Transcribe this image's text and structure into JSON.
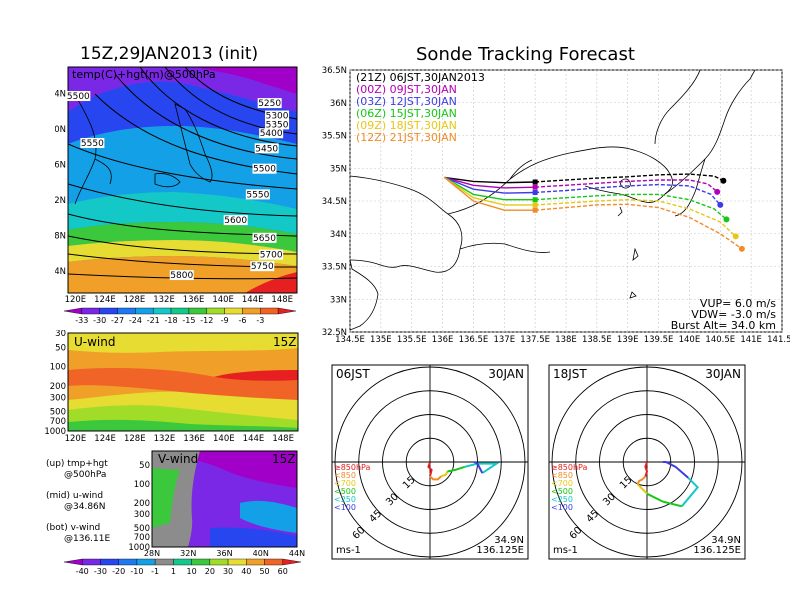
{
  "left_title": "15Z,29JAN2013 (init)",
  "right_title": "Sonde Tracking Forecast",
  "chart_data": [
    {
      "type": "heatmap",
      "title": "15Z,29JAN2013 (init)",
      "label": "temp(C)+hgt(m)@500hPa",
      "x_ticks": [
        "120E",
        "124E",
        "128E",
        "132E",
        "136E",
        "140E",
        "144E",
        "148E"
      ],
      "y_ticks": [
        "24N",
        "28N",
        "32N",
        "36N",
        "40N",
        "44N"
      ],
      "xlim": [
        119,
        150
      ],
      "ylim": [
        21.5,
        47
      ],
      "colorbar_labels": [
        "-33",
        "-30",
        "-27",
        "-24",
        "-21",
        "-18",
        "-15",
        "-12",
        "-9",
        "-6",
        "-3"
      ],
      "colorbar_colors": [
        "#a000c8",
        "#7a28e6",
        "#2846f0",
        "#1e78f0",
        "#14a0e6",
        "#14c8c8",
        "#14c88c",
        "#3cc83c",
        "#a0dc28",
        "#e6dc32",
        "#f0a028",
        "#f06428",
        "#e62020"
      ],
      "contour_labels": [
        {
          "v": "5250",
          "x": 146.3,
          "y": 42.7
        },
        {
          "v": "5300",
          "x": 147.3,
          "y": 41.3
        },
        {
          "v": "5350",
          "x": 147.3,
          "y": 40.3
        },
        {
          "v": "5400",
          "x": 146.5,
          "y": 39.3
        },
        {
          "v": "5450",
          "x": 145.9,
          "y": 37.6
        },
        {
          "v": "5500",
          "x": 145.6,
          "y": 35.3
        },
        {
          "v": "5550",
          "x": 122.3,
          "y": 38.2
        },
        {
          "v": "5550",
          "x": 144.7,
          "y": 32.4
        },
        {
          "v": "5600",
          "x": 141.7,
          "y": 29.5
        },
        {
          "v": "5650",
          "x": 145.6,
          "y": 27.5
        },
        {
          "v": "5700",
          "x": 146.5,
          "y": 25.6
        },
        {
          "v": "5750",
          "x": 145.3,
          "y": 24.3
        },
        {
          "v": "5800",
          "x": 134.4,
          "y": 23.3
        },
        {
          "v": "5500",
          "x": 120.4,
          "y": 43.5
        }
      ]
    },
    {
      "type": "heatmap",
      "label": "U-wind",
      "time": "15Z",
      "x_ticks": [
        "120E",
        "124E",
        "128E",
        "132E",
        "136E",
        "140E",
        "144E",
        "148E"
      ],
      "y_ticks": [
        "30",
        "50",
        "100",
        "200",
        "300",
        "500",
        "700",
        "1000"
      ]
    },
    {
      "type": "heatmap",
      "label": "V-wind",
      "time": "15Z",
      "x_ticks": [
        "28N",
        "32N",
        "36N",
        "40N",
        "44N"
      ],
      "y_ticks": [
        "50",
        "100",
        "200",
        "300",
        "500",
        "700",
        "1000"
      ],
      "colorbar_labels": [
        "-40",
        "-30",
        "-20",
        "-10",
        "-1",
        "1",
        "10",
        "20",
        "30",
        "40",
        "50",
        "60"
      ],
      "colorbar_colors": [
        "#a000c8",
        "#7a28e6",
        "#2846f0",
        "#1e78f0",
        "#14a0e6",
        "#8c8c8c",
        "#14c88c",
        "#3cc83c",
        "#a0dc28",
        "#e6dc32",
        "#f0a028",
        "#f06428",
        "#e62020"
      ]
    },
    {
      "type": "line",
      "title": "Sonde Tracking Forecast",
      "x_ticks": [
        "134.5E",
        "135E",
        "135.5E",
        "136E",
        "136.5E",
        "137E",
        "137.5E",
        "138E",
        "138.5E",
        "139E",
        "139.5E",
        "140E",
        "140.5E",
        "141E",
        "141.5E"
      ],
      "y_ticks": [
        "32.5N",
        "33N",
        "33.5N",
        "34N",
        "34.5N",
        "35N",
        "35.5N",
        "36N",
        "36.5N"
      ],
      "xlim": [
        134.5,
        141.5
      ],
      "ylim": [
        32.5,
        36.5
      ],
      "series": [
        {
          "name": "(21Z) 06JST,30JAN2013",
          "color": "#000000",
          "x": [
            136.03,
            136.5,
            137.0,
            137.5,
            138.0,
            138.5,
            139.0,
            139.5,
            140.0,
            140.4,
            140.55
          ],
          "y": [
            34.86,
            34.8,
            34.78,
            34.79,
            34.82,
            34.85,
            34.87,
            34.9,
            34.91,
            34.88,
            34.81
          ],
          "marker_index": 3
        },
        {
          "name": "(00Z) 09JST,30JAN",
          "color": "#b400b4",
          "x": [
            136.03,
            136.5,
            137.0,
            137.5,
            138.0,
            138.5,
            139.0,
            139.5,
            140.0,
            140.3,
            140.45
          ],
          "y": [
            34.86,
            34.74,
            34.7,
            34.71,
            34.74,
            34.77,
            34.8,
            34.82,
            34.82,
            34.76,
            34.64
          ],
          "marker_index": 3
        },
        {
          "name": "(03Z) 12JST,30JAN",
          "color": "#3c3ce6",
          "x": [
            136.03,
            136.5,
            137.0,
            137.5,
            138.0,
            138.5,
            139.0,
            139.5,
            140.0,
            140.35,
            140.5
          ],
          "y": [
            34.86,
            34.68,
            34.62,
            34.63,
            34.66,
            34.7,
            34.73,
            34.75,
            34.73,
            34.6,
            34.44
          ],
          "marker_index": 3
        },
        {
          "name": "(06Z) 15JST,30JAN",
          "color": "#14c814",
          "x": [
            136.03,
            136.5,
            137.0,
            137.5,
            138.0,
            138.5,
            139.0,
            139.5,
            140.0,
            140.4,
            140.6
          ],
          "y": [
            34.86,
            34.6,
            34.52,
            34.52,
            34.55,
            34.58,
            34.6,
            34.6,
            34.52,
            34.38,
            34.22
          ],
          "marker_index": 3
        },
        {
          "name": "(09Z) 18JST,30JAN",
          "color": "#e6c814",
          "x": [
            136.03,
            136.5,
            137.0,
            137.5,
            138.0,
            138.5,
            139.0,
            139.5,
            140.0,
            140.5,
            140.75
          ],
          "y": [
            34.86,
            34.55,
            34.44,
            34.44,
            34.47,
            34.5,
            34.52,
            34.5,
            34.38,
            34.18,
            33.96
          ],
          "marker_index": 3
        },
        {
          "name": "(12Z) 21JST,30JAN",
          "color": "#f08c28",
          "x": [
            136.03,
            136.5,
            137.0,
            137.5,
            138.0,
            138.5,
            139.0,
            139.5,
            140.0,
            140.5,
            140.85
          ],
          "y": [
            34.86,
            34.5,
            34.36,
            34.36,
            34.4,
            34.44,
            34.45,
            34.4,
            34.25,
            34.0,
            33.77
          ],
          "marker_index": 3
        }
      ],
      "annotations": [
        "VUP= 6.0 m/s",
        "VDW= -3.0 m/s",
        "Burst Alt= 34.0 km"
      ]
    },
    {
      "type": "line",
      "label": "06JST",
      "date": "30JAN",
      "unit": "ms-1",
      "ring_labels": [
        "15",
        "30",
        "45",
        "60"
      ],
      "location": [
        "34.9N",
        "136.125E"
      ],
      "pressure_legend": [
        {
          "label": "≥850hPa",
          "color": "#e62020"
        },
        {
          "label": "<850",
          "color": "#f08c28"
        },
        {
          "label": "<700",
          "color": "#e6c814"
        },
        {
          "label": "<500",
          "color": "#14c814"
        },
        {
          "label": "<250",
          "color": "#14c8c8"
        },
        {
          "label": "<100",
          "color": "#3c3ce6"
        }
      ],
      "hodograph": [
        {
          "color": "#e62020",
          "u": [
            0,
            -1,
            1,
            0
          ],
          "v": [
            -0.2,
            -3,
            -5,
            -9
          ]
        },
        {
          "color": "#f08c28",
          "u": [
            0,
            2,
            5,
            7
          ],
          "v": [
            -9,
            -11,
            -11,
            -9
          ]
        },
        {
          "color": "#e6c814",
          "u": [
            7,
            10,
            11
          ],
          "v": [
            -9,
            -8,
            -6
          ]
        },
        {
          "color": "#14c814",
          "u": [
            11,
            16,
            22
          ],
          "v": [
            -6,
            -5,
            -3
          ]
        },
        {
          "color": "#14c8c8",
          "u": [
            22,
            30,
            42,
            33
          ],
          "v": [
            -3,
            -1,
            -1,
            -7
          ]
        },
        {
          "color": "#3c3ce6",
          "u": [
            33,
            30,
            28
          ],
          "v": [
            -7,
            -1,
            0
          ]
        }
      ]
    },
    {
      "type": "line",
      "label": "18JST",
      "date": "30JAN",
      "unit": "ms-1",
      "ring_labels": [
        "15",
        "30",
        "45",
        "60"
      ],
      "location": [
        "34.9N",
        "136.125E"
      ],
      "pressure_legend": [
        {
          "label": "≥850hPa",
          "color": "#e62020"
        },
        {
          "label": "<850",
          "color": "#f08c28"
        },
        {
          "label": "<700",
          "color": "#e6c814"
        },
        {
          "label": "<500",
          "color": "#14c814"
        },
        {
          "label": "<250",
          "color": "#14c8c8"
        },
        {
          "label": "<100",
          "color": "#3c3ce6"
        }
      ],
      "hodograph": [
        {
          "color": "#e62020",
          "u": [
            0,
            -1,
            0,
            -1
          ],
          "v": [
            0,
            -3,
            -6,
            -9
          ]
        },
        {
          "color": "#f08c28",
          "u": [
            -1,
            -3,
            -5,
            -6
          ],
          "v": [
            -9,
            -11,
            -12,
            -14
          ]
        },
        {
          "color": "#e6c814",
          "u": [
            -6,
            -3,
            0
          ],
          "v": [
            -14,
            -17,
            -20
          ]
        },
        {
          "color": "#14c814",
          "u": [
            0,
            10,
            22
          ],
          "v": [
            -20,
            -25,
            -28
          ]
        },
        {
          "color": "#14c8c8",
          "u": [
            22,
            32,
            26
          ],
          "v": [
            -28,
            -16,
            -10
          ]
        },
        {
          "color": "#3c3ce6",
          "u": [
            26,
            18,
            12,
            10
          ],
          "v": [
            -10,
            -3,
            0,
            0
          ]
        }
      ]
    }
  ],
  "left_legend": {
    "up_line1": "(up) tmp+hgt",
    "up_line2": "@500hPa",
    "mid_line1": "(mid) u-wind",
    "mid_line2": "@34.86N",
    "bot_line1": "(bot) v-wind",
    "bot_line2": "@136.11E"
  }
}
